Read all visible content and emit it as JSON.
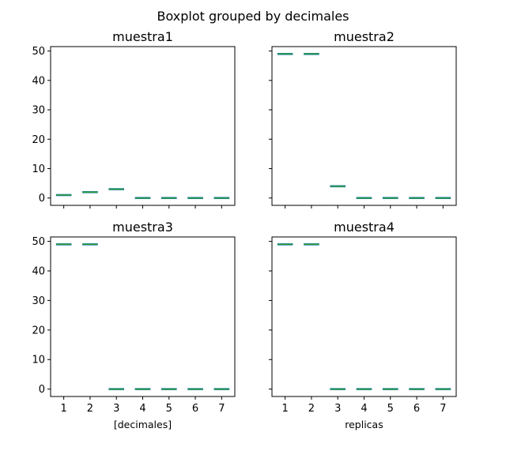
{
  "chart_data": {
    "type": "boxplot",
    "title": "Boxplot grouped by decimales",
    "categories": [
      "1",
      "2",
      "3",
      "4",
      "5",
      "6",
      "7"
    ],
    "ylim": [
      -2.5,
      51.5
    ],
    "yticks": [
      "0",
      "10",
      "20",
      "30",
      "40",
      "50"
    ],
    "grid": false,
    "colors": {
      "box": "#1f77b4",
      "median": "#2ca02c"
    },
    "panels": [
      {
        "title": "muestra1",
        "xlabel": "",
        "values": [
          1,
          2,
          3,
          0,
          0,
          0,
          0
        ]
      },
      {
        "title": "muestra2",
        "xlabel": "",
        "values": [
          49,
          49,
          4,
          0,
          0,
          0,
          0
        ]
      },
      {
        "title": "muestra3",
        "xlabel": "[decimales]",
        "values": [
          49,
          49,
          0,
          0,
          0,
          0,
          0
        ]
      },
      {
        "title": "muestra4",
        "xlabel": "replicas",
        "values": [
          49,
          49,
          0,
          0,
          0,
          0,
          0
        ]
      }
    ]
  }
}
